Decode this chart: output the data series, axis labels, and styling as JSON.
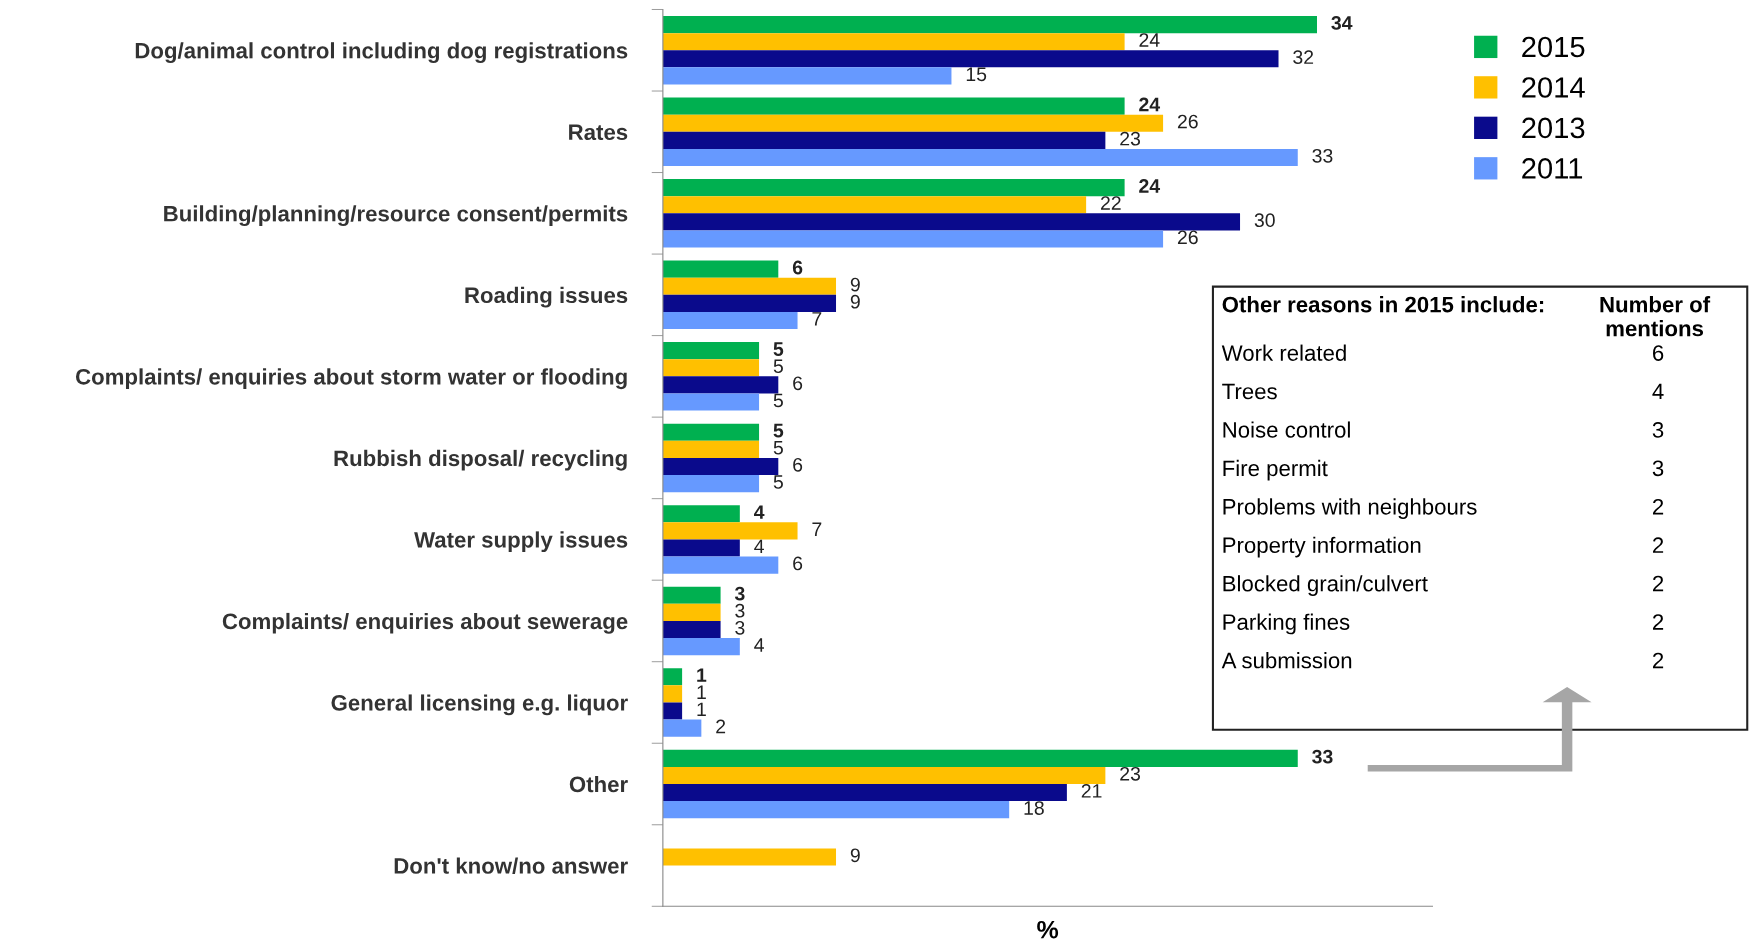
{
  "chart_data": {
    "type": "bar",
    "orientation": "horizontal",
    "xlabel": "%",
    "xlim": [
      0,
      40
    ],
    "tick_labels": "y",
    "grid": false,
    "legend": "top right",
    "data_labels": true,
    "categories": [
      "Dog/animal control including dog registrations",
      "Rates",
      "Building/planning/resource consent/permits",
      "Roading issues",
      "Complaints/ enquiries about storm water or flooding",
      "Rubbish disposal/ recycling",
      "Water supply issues",
      "Complaints/ enquiries about sewerage",
      "General licensing e.g. liquor",
      "Other",
      "Don't know/no answer"
    ],
    "series": [
      {
        "name": "2015",
        "color": "#00b050",
        "values": [
          34,
          24,
          24,
          6,
          5,
          5,
          4,
          3,
          1,
          33,
          null
        ]
      },
      {
        "name": "2014",
        "color": "#ffc000",
        "values": [
          24,
          26,
          22,
          9,
          5,
          5,
          7,
          3,
          1,
          23,
          9
        ]
      },
      {
        "name": "2013",
        "color": "#0a0a8c",
        "values": [
          32,
          23,
          30,
          9,
          6,
          6,
          4,
          3,
          1,
          21,
          null
        ]
      },
      {
        "name": "2011",
        "color": "#6699ff",
        "values": [
          15,
          33,
          26,
          7,
          5,
          5,
          6,
          4,
          2,
          18,
          null
        ]
      }
    ],
    "annotations": [
      "Other reasons in 2015 include:",
      "Number of mentions",
      "Work related",
      "6",
      "Trees",
      "4",
      "Noise control",
      "3",
      "Fire permit",
      "3",
      "Problems with neighbours",
      "2",
      "Property information",
      "2",
      "Blocked grain/culvert",
      "2",
      "Parking fines",
      "2",
      "A submission",
      "2"
    ]
  }
}
